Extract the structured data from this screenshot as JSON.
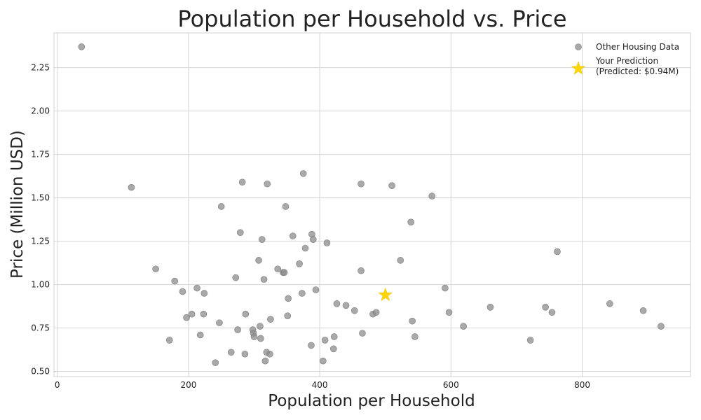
{
  "chart_data": {
    "type": "scatter",
    "title": "Population per Household vs. Price",
    "xlabel": "Population per Household",
    "ylabel": "Price (Million USD)",
    "xlim": [
      -5,
      965
    ],
    "ylim": [
      0.47,
      2.45
    ],
    "xticks": [
      0,
      200,
      400,
      600,
      800
    ],
    "xtick_labels": [
      "0",
      "200",
      "400",
      "600",
      "800"
    ],
    "yticks": [
      0.5,
      0.75,
      1.0,
      1.25,
      1.5,
      1.75,
      2.0,
      2.25
    ],
    "ytick_labels": [
      "0.50",
      "0.75",
      "1.00",
      "1.25",
      "1.50",
      "1.75",
      "2.00",
      "2.25"
    ],
    "grid": true,
    "legend_position": "top-right",
    "series": [
      {
        "name": "Other Housing Data",
        "marker": "circle",
        "color": "#8c8c8c",
        "points": [
          [
            37,
            2.37
          ],
          [
            113,
            1.56
          ],
          [
            150,
            1.09
          ],
          [
            179,
            1.02
          ],
          [
            191,
            0.96
          ],
          [
            197,
            0.81
          ],
          [
            171,
            0.68
          ],
          [
            205,
            0.83
          ],
          [
            213,
            0.98
          ],
          [
            218,
            0.71
          ],
          [
            223,
            0.83
          ],
          [
            224,
            0.95
          ],
          [
            241,
            0.55
          ],
          [
            247,
            0.78
          ],
          [
            250,
            1.45
          ],
          [
            265,
            0.61
          ],
          [
            272,
            1.04
          ],
          [
            275,
            0.74
          ],
          [
            279,
            1.3
          ],
          [
            282,
            1.59
          ],
          [
            286,
            0.6
          ],
          [
            287,
            0.83
          ],
          [
            298,
            0.74
          ],
          [
            299,
            0.72
          ],
          [
            300,
            0.7
          ],
          [
            307,
            1.14
          ],
          [
            309,
            0.76
          ],
          [
            310,
            0.69
          ],
          [
            312,
            1.26
          ],
          [
            315,
            1.03
          ],
          [
            317,
            0.56
          ],
          [
            319,
            0.61
          ],
          [
            320,
            1.58
          ],
          [
            324,
            0.6
          ],
          [
            325,
            0.8
          ],
          [
            336,
            1.09
          ],
          [
            344,
            1.07
          ],
          [
            346,
            1.07
          ],
          [
            348,
            1.45
          ],
          [
            351,
            0.82
          ],
          [
            352,
            0.92
          ],
          [
            359,
            1.28
          ],
          [
            369,
            1.12
          ],
          [
            373,
            0.95
          ],
          [
            375,
            1.64
          ],
          [
            378,
            1.21
          ],
          [
            387,
            0.65
          ],
          [
            388,
            1.29
          ],
          [
            390,
            1.26
          ],
          [
            394,
            0.97
          ],
          [
            405,
            0.56
          ],
          [
            408,
            0.68
          ],
          [
            411,
            1.24
          ],
          [
            421,
            0.63
          ],
          [
            422,
            0.7
          ],
          [
            426,
            0.89
          ],
          [
            440,
            0.88
          ],
          [
            453,
            0.85
          ],
          [
            463,
            1.58
          ],
          [
            463,
            1.08
          ],
          [
            465,
            0.72
          ],
          [
            481,
            0.83
          ],
          [
            486,
            0.84
          ],
          [
            510,
            1.57
          ],
          [
            523,
            1.14
          ],
          [
            539,
            1.36
          ],
          [
            541,
            0.79
          ],
          [
            545,
            0.7
          ],
          [
            571,
            1.51
          ],
          [
            591,
            0.98
          ],
          [
            597,
            0.84
          ],
          [
            619,
            0.76
          ],
          [
            660,
            0.87
          ],
          [
            721,
            0.68
          ],
          [
            744,
            0.87
          ],
          [
            754,
            0.84
          ],
          [
            762,
            1.19
          ],
          [
            842,
            0.89
          ],
          [
            893,
            0.85
          ],
          [
            920,
            0.76
          ]
        ]
      },
      {
        "name": "Your Prediction\n(Predicted: $0.94M)",
        "marker": "star",
        "color": "#ffd700",
        "points": [
          [
            500,
            0.94
          ]
        ]
      }
    ]
  }
}
